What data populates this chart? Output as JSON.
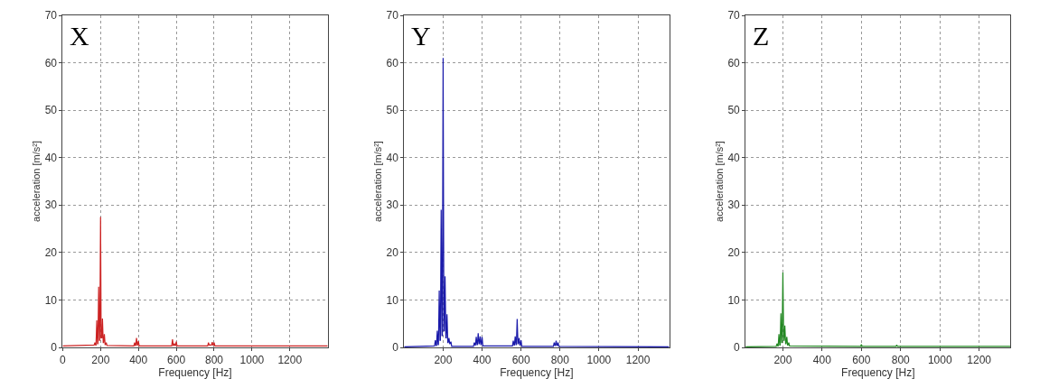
{
  "chart_data": [
    {
      "type": "line",
      "title": "X",
      "xlabel": "Frequency [Hz]",
      "ylabel": "acceleration [m/s²]",
      "x": [
        0,
        166,
        170,
        174,
        176,
        180,
        184,
        186,
        190,
        194,
        196,
        200,
        203,
        207,
        210,
        214,
        216,
        220,
        224,
        226,
        230,
        234,
        376,
        380,
        384,
        386,
        390,
        394,
        396,
        400,
        404,
        576,
        580,
        584,
        586,
        590,
        594,
        596,
        600,
        604,
        766,
        770,
        774,
        786,
        790,
        794,
        796,
        800,
        804,
        1400
      ],
      "series": [
        {
          "color": "#cc2222",
          "values": [
            0.3,
            0.5,
            1,
            0.5,
            0.5,
            5.7,
            0.8,
            0.8,
            12.8,
            1.5,
            1.5,
            27.5,
            2,
            2,
            6.1,
            1,
            1,
            2.8,
            0.6,
            0.6,
            1,
            0.4,
            0.3,
            1,
            0.4,
            0.4,
            2,
            0.5,
            0.5,
            1.3,
            0.3,
            0.3,
            1.7,
            0.4,
            0.4,
            0.8,
            0.4,
            0.4,
            1.2,
            0.3,
            0.3,
            1,
            0.5,
            0.5,
            1.1,
            0.5,
            0.5,
            1,
            0.3,
            0.3
          ]
        }
      ],
      "xlim": [
        0,
        1400
      ],
      "xticks": [
        0,
        200,
        400,
        600,
        800,
        1000,
        1200
      ],
      "ylim": [
        0,
        70
      ],
      "yticks": [
        0,
        10,
        20,
        30,
        40,
        50,
        60,
        70
      ],
      "grid": true
    },
    {
      "type": "line",
      "title": "Y",
      "xlabel": "Frequency [Hz]",
      "ylabel": "acceleration [m/s²]",
      "x": [
        0,
        156,
        160,
        164,
        166,
        170,
        174,
        176,
        180,
        184,
        186,
        190,
        194,
        196,
        200,
        204,
        206,
        210,
        214,
        216,
        220,
        224,
        226,
        230,
        234,
        236,
        240,
        244,
        356,
        360,
        364,
        366,
        370,
        374,
        376,
        380,
        384,
        386,
        390,
        394,
        396,
        400,
        404,
        556,
        560,
        564,
        566,
        570,
        574,
        576,
        580,
        584,
        586,
        590,
        594,
        596,
        600,
        604,
        766,
        770,
        774,
        776,
        780,
        784,
        786,
        790,
        794,
        1360
      ],
      "series": [
        {
          "color": "#1a1aaa",
          "values": [
            0.1,
            0.3,
            1.5,
            0.4,
            0.4,
            3.5,
            0.6,
            0.6,
            12,
            1.5,
            1.5,
            29,
            2.5,
            2.5,
            61,
            3.5,
            3.5,
            15,
            2,
            2,
            7,
            1,
            1,
            2,
            0.8,
            0.8,
            1.2,
            0.2,
            0.2,
            1,
            0.5,
            0.5,
            2.2,
            0.6,
            0.6,
            3,
            0.8,
            0.8,
            2.3,
            0.6,
            0.6,
            2.2,
            0.3,
            0.3,
            1.4,
            0.5,
            0.5,
            2.3,
            0.6,
            0.6,
            6,
            0.8,
            0.8,
            2,
            0.5,
            0.5,
            1.5,
            0.2,
            0.2,
            1,
            0.4,
            0.4,
            1.4,
            0.4,
            0.4,
            1,
            0.2,
            0.1
          ]
        }
      ],
      "xlim": [
        0,
        1360
      ],
      "xticks": [
        200,
        400,
        600,
        800,
        1000,
        1200
      ],
      "ylim": [
        0,
        70
      ],
      "yticks": [
        0,
        10,
        20,
        30,
        40,
        50,
        60,
        70
      ],
      "grid": true
    },
    {
      "type": "line",
      "title": "Z",
      "xlabel": "Frequency [Hz]",
      "ylabel": "acceleration [m/s²]",
      "x": [
        10,
        166,
        170,
        174,
        176,
        180,
        184,
        186,
        190,
        194,
        196,
        200,
        204,
        206,
        210,
        214,
        216,
        220,
        224,
        226,
        230,
        234,
        596,
        600,
        604,
        776,
        780,
        784,
        1360
      ],
      "series": [
        {
          "color": "#228822",
          "values": [
            0.1,
            0.2,
            0.8,
            0.3,
            0.3,
            2.8,
            0.5,
            0.5,
            7.2,
            1,
            1,
            15.8,
            1.5,
            1.5,
            4.6,
            0.8,
            0.8,
            2.2,
            0.5,
            0.5,
            1,
            0.3,
            0.2,
            0.6,
            0.2,
            0.2,
            0.5,
            0.2,
            0.2
          ]
        }
      ],
      "xlim": [
        10,
        1360
      ],
      "xticks": [
        200,
        400,
        600,
        800,
        1000,
        1200
      ],
      "ylim": [
        0,
        70
      ],
      "yticks": [
        0,
        10,
        20,
        30,
        40,
        50,
        60,
        70
      ],
      "grid": true
    }
  ]
}
